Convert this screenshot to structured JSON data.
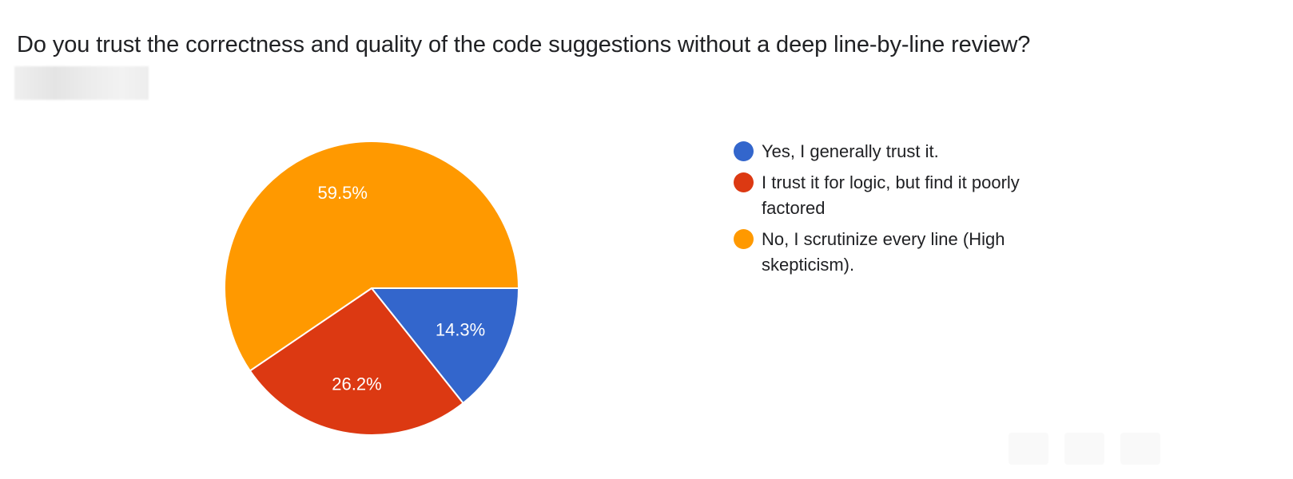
{
  "question": {
    "title": "Do you trust the correctness and quality of the code suggestions without a deep line-by-line review?"
  },
  "chart_data": {
    "type": "pie",
    "title": "Do you trust the correctness and quality of the code suggestions without a deep line-by-line review?",
    "categories": [
      "Yes, I generally trust it.",
      "I trust it for logic, but find it poorly factored",
      "No, I scrutinize every line (High skepticism)."
    ],
    "values": [
      14.3,
      26.2,
      59.5
    ],
    "labels": [
      "14.3%",
      "26.2%",
      "59.5%"
    ],
    "colors": [
      "#3366cc",
      "#dc3912",
      "#ff9900"
    ],
    "legend_position": "right",
    "start_angle": "3 o'clock",
    "direction": "clockwise"
  }
}
